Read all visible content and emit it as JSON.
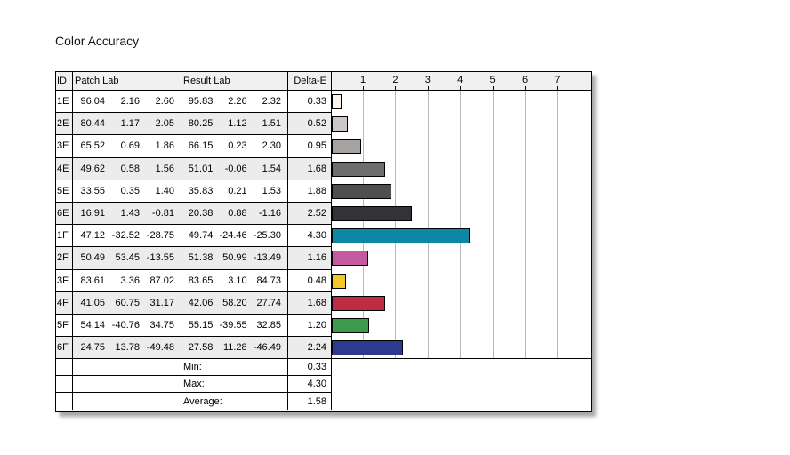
{
  "title": "Color Accuracy",
  "table": {
    "headers": {
      "id": "ID",
      "patch": "Patch Lab",
      "result": "Result Lab",
      "delta": "Delta-E"
    },
    "rows": [
      {
        "id": "1E",
        "patch": [
          "96.04",
          "2.16",
          "2.60"
        ],
        "result": [
          "95.83",
          "2.26",
          "2.32"
        ],
        "delta": "0.33"
      },
      {
        "id": "2E",
        "patch": [
          "80.44",
          "1.17",
          "2.05"
        ],
        "result": [
          "80.25",
          "1.12",
          "1.51"
        ],
        "delta": "0.52"
      },
      {
        "id": "3E",
        "patch": [
          "65.52",
          "0.69",
          "1.86"
        ],
        "result": [
          "66.15",
          "0.23",
          "2.30"
        ],
        "delta": "0.95"
      },
      {
        "id": "4E",
        "patch": [
          "49.62",
          "0.58",
          "1.56"
        ],
        "result": [
          "51.01",
          "-0.06",
          "1.54"
        ],
        "delta": "1.68"
      },
      {
        "id": "5E",
        "patch": [
          "33.55",
          "0.35",
          "1.40"
        ],
        "result": [
          "35.83",
          "0.21",
          "1.53"
        ],
        "delta": "1.88"
      },
      {
        "id": "6E",
        "patch": [
          "16.91",
          "1.43",
          "-0.81"
        ],
        "result": [
          "20.38",
          "0.88",
          "-1.16"
        ],
        "delta": "2.52"
      },
      {
        "id": "1F",
        "patch": [
          "47.12",
          "-32.52",
          "-28.75"
        ],
        "result": [
          "49.74",
          "-24.46",
          "-25.30"
        ],
        "delta": "4.30"
      },
      {
        "id": "2F",
        "patch": [
          "50.49",
          "53.45",
          "-13.55"
        ],
        "result": [
          "51.38",
          "50.99",
          "-13.49"
        ],
        "delta": "1.16"
      },
      {
        "id": "3F",
        "patch": [
          "83.61",
          "3.36",
          "87.02"
        ],
        "result": [
          "83.65",
          "3.10",
          "84.73"
        ],
        "delta": "0.48"
      },
      {
        "id": "4F",
        "patch": [
          "41.05",
          "60.75",
          "31.17"
        ],
        "result": [
          "42.06",
          "58.20",
          "27.74"
        ],
        "delta": "1.68"
      },
      {
        "id": "5F",
        "patch": [
          "54.14",
          "-40.76",
          "34.75"
        ],
        "result": [
          "55.15",
          "-39.55",
          "32.85"
        ],
        "delta": "1.20"
      },
      {
        "id": "6F",
        "patch": [
          "24.75",
          "13.78",
          "-49.48"
        ],
        "result": [
          "27.58",
          "11.28",
          "-46.49"
        ],
        "delta": "2.24"
      }
    ],
    "summary": [
      {
        "label": "Min:",
        "value": "0.33"
      },
      {
        "label": "Max:",
        "value": "4.30"
      },
      {
        "label": "Average:",
        "value": "1.58"
      }
    ]
  },
  "chart_data": {
    "type": "bar",
    "orientation": "horizontal",
    "title": "Color Accuracy",
    "xlabel": "Delta-E",
    "categories": [
      "1E",
      "2E",
      "3E",
      "4E",
      "5E",
      "6E",
      "1F",
      "2F",
      "3F",
      "4F",
      "5F",
      "6F"
    ],
    "values": [
      0.33,
      0.52,
      0.95,
      1.68,
      1.88,
      2.52,
      4.3,
      1.16,
      0.48,
      1.68,
      1.2,
      2.24
    ],
    "bar_colors": [
      "#fbf2ee",
      "#cac7c6",
      "#a5a2a0",
      "#6f6e6d",
      "#504f4e",
      "#333236",
      "#0e87a5",
      "#c25a9d",
      "#f2c728",
      "#bf2b40",
      "#3f9a4e",
      "#2c3b8e"
    ],
    "axis_ticks": [
      1,
      2,
      3,
      4,
      5,
      6,
      7
    ],
    "xlim": [
      0,
      8
    ],
    "grid": true,
    "legend": false,
    "stats": {
      "min": 0.33,
      "max": 4.3,
      "average": 1.58
    }
  },
  "colors": {
    "header_bg": "#f0f0f0",
    "stripe_bg": "#ececec",
    "gridline": "#b9b9b9",
    "border": "#000000"
  }
}
